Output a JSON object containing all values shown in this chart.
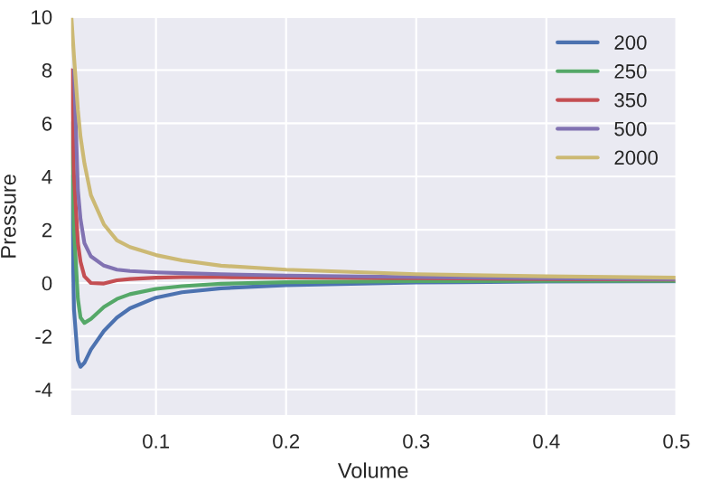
{
  "chart_data": {
    "type": "line",
    "xlabel": "Volume",
    "ylabel": "Pressure",
    "x": [
      0.035,
      0.037,
      0.04,
      0.042,
      0.045,
      0.05,
      0.06,
      0.07,
      0.08,
      0.1,
      0.12,
      0.15,
      0.2,
      0.3,
      0.4,
      0.5
    ],
    "series": [
      {
        "name": "200",
        "color": "#4c72b0",
        "values": [
          4,
          -1,
          -2.9,
          -3.15,
          -3.0,
          -2.5,
          -1.8,
          -1.3,
          -0.95,
          -0.55,
          -0.35,
          -0.2,
          -0.08,
          0.02,
          0.05,
          0.06
        ]
      },
      {
        "name": "250",
        "color": "#55a868",
        "values": [
          6,
          2,
          -0.6,
          -1.3,
          -1.5,
          -1.35,
          -0.9,
          -0.6,
          -0.42,
          -0.22,
          -0.12,
          -0.03,
          0.03,
          0.07,
          0.08,
          0.08
        ]
      },
      {
        "name": "350",
        "color": "#c44e52",
        "values": [
          8,
          4,
          1.5,
          0.8,
          0.25,
          0.0,
          -0.02,
          0.1,
          0.15,
          0.2,
          0.22,
          0.22,
          0.21,
          0.18,
          0.15,
          0.13
        ]
      },
      {
        "name": "500",
        "color": "#8172b2",
        "values": [
          null,
          8,
          3.5,
          2.4,
          1.5,
          1.0,
          0.65,
          0.5,
          0.45,
          0.4,
          0.37,
          0.33,
          0.28,
          0.22,
          0.18,
          0.15
        ]
      },
      {
        "name": "2000",
        "color": "#ccb974",
        "values": [
          10,
          8.5,
          6.5,
          5.5,
          4.5,
          3.3,
          2.2,
          1.6,
          1.35,
          1.05,
          0.85,
          0.65,
          0.5,
          0.33,
          0.25,
          0.2
        ]
      }
    ],
    "xlim": [
      0.034,
      0.5
    ],
    "ylim": [
      -5,
      10
    ],
    "xticks": [
      0.1,
      0.2,
      0.3,
      0.4,
      0.5
    ],
    "yticks": [
      -4,
      -2,
      0,
      2,
      4,
      6,
      8,
      10
    ],
    "grid": true,
    "legend": "top right"
  }
}
